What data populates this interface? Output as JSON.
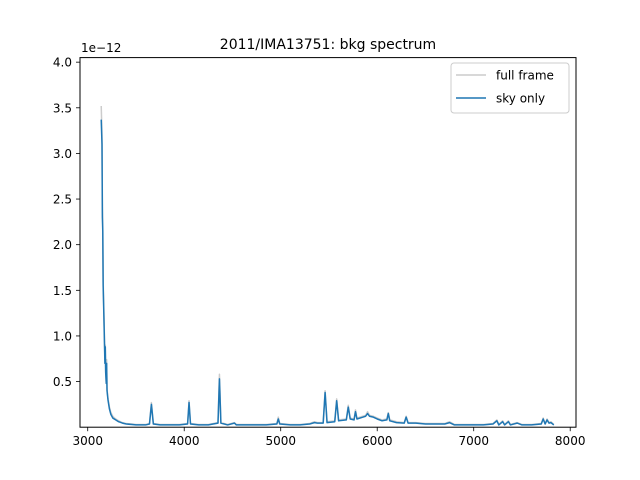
{
  "chart_data": {
    "type": "line",
    "title": "2011/IMA13751: bkg spectrum",
    "xlabel": "",
    "ylabel": "",
    "y_offset_label": "1e−12",
    "xlim": [
      2920,
      8060
    ],
    "ylim": [
      0.0,
      4.05
    ],
    "x_ticks": [
      3000,
      4000,
      5000,
      6000,
      7000,
      8000
    ],
    "x_tick_labels": [
      "3000",
      "4000",
      "5000",
      "6000",
      "7000",
      "8000"
    ],
    "y_ticks": [
      0.5,
      1.0,
      1.5,
      2.0,
      2.5,
      3.0,
      3.5,
      4.0
    ],
    "y_tick_labels": [
      "0.5",
      "1.0",
      "1.5",
      "2.0",
      "2.5",
      "3.0",
      "3.5",
      "4.0"
    ],
    "grid": false,
    "legend_position": "top-right",
    "series": [
      {
        "name": "full frame",
        "color": "#cccccc",
        "points": [
          [
            3140,
            3.52
          ],
          [
            3148,
            3.2
          ],
          [
            3152,
            2.4
          ],
          [
            3156,
            2.22
          ],
          [
            3160,
            1.6
          ],
          [
            3165,
            1.38
          ],
          [
            3172,
            1.05
          ],
          [
            3178,
            0.74
          ],
          [
            3182,
            0.9
          ],
          [
            3186,
            0.62
          ],
          [
            3192,
            0.5
          ],
          [
            3196,
            0.74
          ],
          [
            3200,
            0.42
          ],
          [
            3210,
            0.32
          ],
          [
            3225,
            0.22
          ],
          [
            3240,
            0.16
          ],
          [
            3260,
            0.12
          ],
          [
            3290,
            0.09
          ],
          [
            3320,
            0.07
          ],
          [
            3360,
            0.05
          ],
          [
            3400,
            0.04
          ],
          [
            3460,
            0.035
          ],
          [
            3500,
            0.03
          ],
          [
            3600,
            0.03
          ],
          [
            3640,
            0.04
          ],
          [
            3660,
            0.27
          ],
          [
            3680,
            0.04
          ],
          [
            3750,
            0.03
          ],
          [
            3850,
            0.03
          ],
          [
            3950,
            0.03
          ],
          [
            4035,
            0.04
          ],
          [
            4050,
            0.29
          ],
          [
            4065,
            0.04
          ],
          [
            4150,
            0.03
          ],
          [
            4250,
            0.03
          ],
          [
            4350,
            0.05
          ],
          [
            4365,
            0.58
          ],
          [
            4380,
            0.05
          ],
          [
            4450,
            0.03
          ],
          [
            4520,
            0.05
          ],
          [
            4540,
            0.03
          ],
          [
            4650,
            0.03
          ],
          [
            4750,
            0.03
          ],
          [
            4850,
            0.03
          ],
          [
            4960,
            0.04
          ],
          [
            4975,
            0.11
          ],
          [
            4990,
            0.04
          ],
          [
            5100,
            0.03
          ],
          [
            5200,
            0.03
          ],
          [
            5300,
            0.04
          ],
          [
            5350,
            0.06
          ],
          [
            5380,
            0.05
          ],
          [
            5440,
            0.05
          ],
          [
            5460,
            0.4
          ],
          [
            5480,
            0.06
          ],
          [
            5560,
            0.07
          ],
          [
            5580,
            0.31
          ],
          [
            5600,
            0.08
          ],
          [
            5680,
            0.09
          ],
          [
            5700,
            0.24
          ],
          [
            5720,
            0.1
          ],
          [
            5760,
            0.09
          ],
          [
            5775,
            0.19
          ],
          [
            5790,
            0.1
          ],
          [
            5850,
            0.12
          ],
          [
            5880,
            0.13
          ],
          [
            5900,
            0.17
          ],
          [
            5920,
            0.13
          ],
          [
            5960,
            0.12
          ],
          [
            6000,
            0.1
          ],
          [
            6050,
            0.08
          ],
          [
            6100,
            0.09
          ],
          [
            6115,
            0.16
          ],
          [
            6130,
            0.08
          ],
          [
            6200,
            0.06
          ],
          [
            6280,
            0.05
          ],
          [
            6300,
            0.12
          ],
          [
            6320,
            0.05
          ],
          [
            6400,
            0.05
          ],
          [
            6500,
            0.04
          ],
          [
            6600,
            0.04
          ],
          [
            6700,
            0.04
          ],
          [
            6750,
            0.06
          ],
          [
            6800,
            0.03
          ],
          [
            6900,
            0.03
          ],
          [
            7000,
            0.03
          ],
          [
            7100,
            0.03
          ],
          [
            7200,
            0.04
          ],
          [
            7240,
            0.08
          ],
          [
            7260,
            0.03
          ],
          [
            7300,
            0.07
          ],
          [
            7320,
            0.03
          ],
          [
            7360,
            0.07
          ],
          [
            7380,
            0.03
          ],
          [
            7450,
            0.05
          ],
          [
            7500,
            0.03
          ],
          [
            7600,
            0.03
          ],
          [
            7700,
            0.04
          ],
          [
            7720,
            0.1
          ],
          [
            7740,
            0.04
          ],
          [
            7760,
            0.09
          ],
          [
            7780,
            0.05
          ],
          [
            7800,
            0.06
          ],
          [
            7830,
            0.03
          ]
        ]
      },
      {
        "name": "sky only",
        "color": "#1f77b4",
        "points": [
          [
            3140,
            3.37
          ],
          [
            3148,
            3.1
          ],
          [
            3152,
            2.3
          ],
          [
            3156,
            2.15
          ],
          [
            3160,
            1.55
          ],
          [
            3165,
            1.33
          ],
          [
            3172,
            1.0
          ],
          [
            3178,
            0.7
          ],
          [
            3182,
            0.88
          ],
          [
            3186,
            0.6
          ],
          [
            3192,
            0.48
          ],
          [
            3196,
            0.7
          ],
          [
            3200,
            0.4
          ],
          [
            3210,
            0.3
          ],
          [
            3225,
            0.2
          ],
          [
            3240,
            0.14
          ],
          [
            3260,
            0.1
          ],
          [
            3290,
            0.08
          ],
          [
            3320,
            0.06
          ],
          [
            3360,
            0.045
          ],
          [
            3400,
            0.035
          ],
          [
            3460,
            0.03
          ],
          [
            3500,
            0.025
          ],
          [
            3600,
            0.025
          ],
          [
            3640,
            0.035
          ],
          [
            3660,
            0.25
          ],
          [
            3680,
            0.035
          ],
          [
            3750,
            0.025
          ],
          [
            3850,
            0.025
          ],
          [
            3950,
            0.025
          ],
          [
            4035,
            0.035
          ],
          [
            4050,
            0.27
          ],
          [
            4065,
            0.035
          ],
          [
            4150,
            0.025
          ],
          [
            4250,
            0.025
          ],
          [
            4350,
            0.045
          ],
          [
            4365,
            0.53
          ],
          [
            4380,
            0.045
          ],
          [
            4450,
            0.025
          ],
          [
            4520,
            0.045
          ],
          [
            4540,
            0.025
          ],
          [
            4650,
            0.025
          ],
          [
            4750,
            0.025
          ],
          [
            4850,
            0.025
          ],
          [
            4960,
            0.035
          ],
          [
            4975,
            0.09
          ],
          [
            4990,
            0.035
          ],
          [
            5100,
            0.025
          ],
          [
            5200,
            0.025
          ],
          [
            5300,
            0.035
          ],
          [
            5350,
            0.05
          ],
          [
            5380,
            0.045
          ],
          [
            5440,
            0.045
          ],
          [
            5460,
            0.38
          ],
          [
            5480,
            0.05
          ],
          [
            5560,
            0.06
          ],
          [
            5580,
            0.29
          ],
          [
            5600,
            0.07
          ],
          [
            5680,
            0.08
          ],
          [
            5700,
            0.22
          ],
          [
            5720,
            0.09
          ],
          [
            5760,
            0.08
          ],
          [
            5775,
            0.17
          ],
          [
            5790,
            0.09
          ],
          [
            5850,
            0.11
          ],
          [
            5880,
            0.12
          ],
          [
            5900,
            0.15
          ],
          [
            5920,
            0.12
          ],
          [
            5960,
            0.11
          ],
          [
            6000,
            0.09
          ],
          [
            6050,
            0.07
          ],
          [
            6100,
            0.08
          ],
          [
            6115,
            0.15
          ],
          [
            6130,
            0.07
          ],
          [
            6200,
            0.05
          ],
          [
            6280,
            0.045
          ],
          [
            6300,
            0.11
          ],
          [
            6320,
            0.045
          ],
          [
            6400,
            0.045
          ],
          [
            6500,
            0.035
          ],
          [
            6600,
            0.035
          ],
          [
            6700,
            0.035
          ],
          [
            6750,
            0.05
          ],
          [
            6800,
            0.025
          ],
          [
            6900,
            0.025
          ],
          [
            7000,
            0.025
          ],
          [
            7100,
            0.025
          ],
          [
            7200,
            0.035
          ],
          [
            7240,
            0.07
          ],
          [
            7260,
            0.025
          ],
          [
            7300,
            0.06
          ],
          [
            7320,
            0.025
          ],
          [
            7360,
            0.06
          ],
          [
            7380,
            0.025
          ],
          [
            7450,
            0.045
          ],
          [
            7500,
            0.025
          ],
          [
            7600,
            0.025
          ],
          [
            7700,
            0.035
          ],
          [
            7720,
            0.09
          ],
          [
            7740,
            0.035
          ],
          [
            7760,
            0.08
          ],
          [
            7780,
            0.045
          ],
          [
            7800,
            0.05
          ],
          [
            7830,
            0.025
          ]
        ]
      }
    ]
  }
}
